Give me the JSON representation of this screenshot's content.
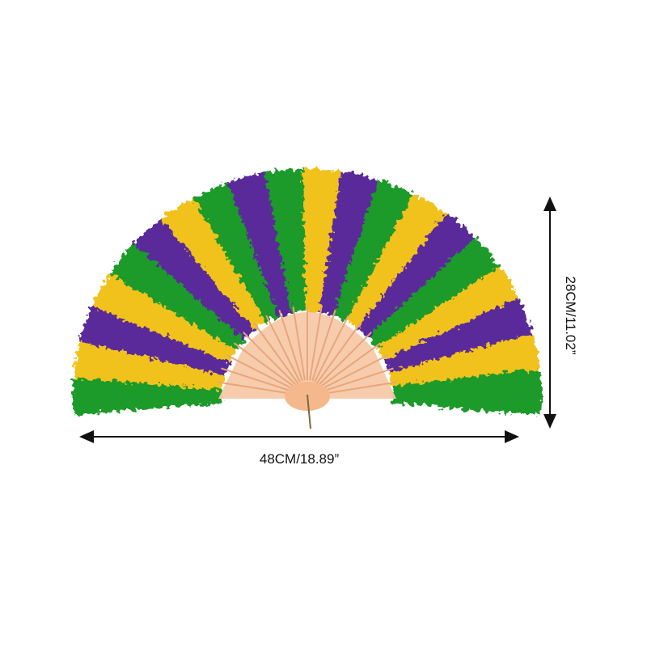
{
  "product": {
    "width_label": "48CM/18.89”",
    "height_label": "28CM/11.02”"
  },
  "colors": {
    "green": "#1f9a2a",
    "yellow": "#f2c21b",
    "purple": "#5a2a9a",
    "frame": "#f7c9a8",
    "arrow": "#111111",
    "background": "#ffffff"
  },
  "feather_pattern": [
    "green",
    "yellow",
    "purple",
    "yellow",
    "green",
    "purple",
    "yellow",
    "green",
    "purple",
    "green",
    "yellow",
    "purple",
    "green",
    "yellow",
    "purple",
    "green",
    "yellow",
    "purple",
    "yellow",
    "green"
  ]
}
